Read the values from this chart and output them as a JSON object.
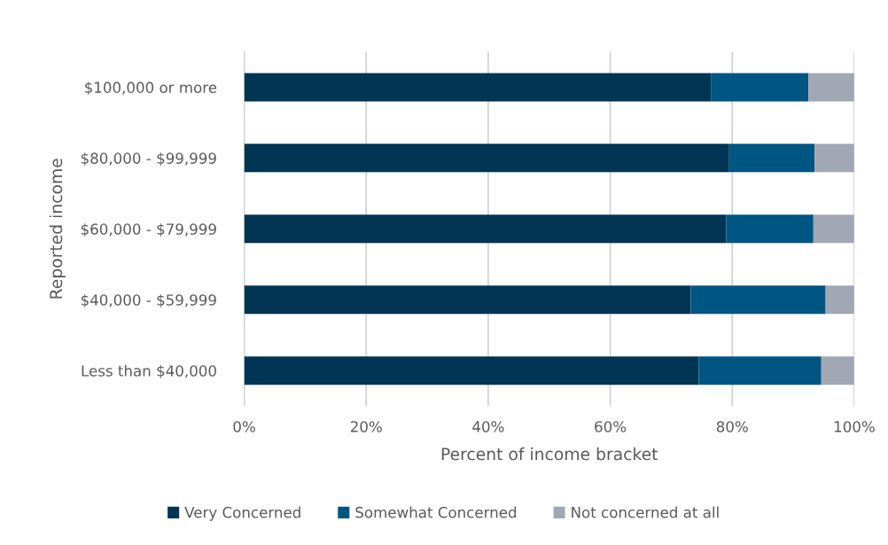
{
  "chart_data": {
    "type": "bar",
    "orientation": "horizontal",
    "stacked": true,
    "categories": [
      "$100,000 or more",
      "$80,000 - $99,999",
      "$60,000 - $79,999",
      "$40,000 - $59,999",
      "Less than $40,000"
    ],
    "series": [
      {
        "name": "Very Concerned",
        "color": "#003554",
        "values": [
          76.5,
          79.5,
          79.0,
          73.2,
          74.5
        ]
      },
      {
        "name": "Somewhat Concerned",
        "color": "#005682",
        "values": [
          16.0,
          14.0,
          14.3,
          22.1,
          20.1
        ]
      },
      {
        "name": "Not concerned at all",
        "color": "#a2a8b3",
        "values": [
          7.5,
          6.5,
          6.7,
          4.7,
          5.4
        ]
      }
    ],
    "xlim": [
      0,
      100
    ],
    "xticks": [
      {
        "value": 0,
        "label": "0%"
      },
      {
        "value": 20,
        "label": "20%"
      },
      {
        "value": 40,
        "label": "40%"
      },
      {
        "value": 60,
        "label": "60%"
      },
      {
        "value": 80,
        "label": "80%"
      },
      {
        "value": 100,
        "label": "100%"
      }
    ],
    "xlabel": "Percent of income bracket",
    "ylabel": "Reported income",
    "grid": "x",
    "legend": "bottom"
  }
}
